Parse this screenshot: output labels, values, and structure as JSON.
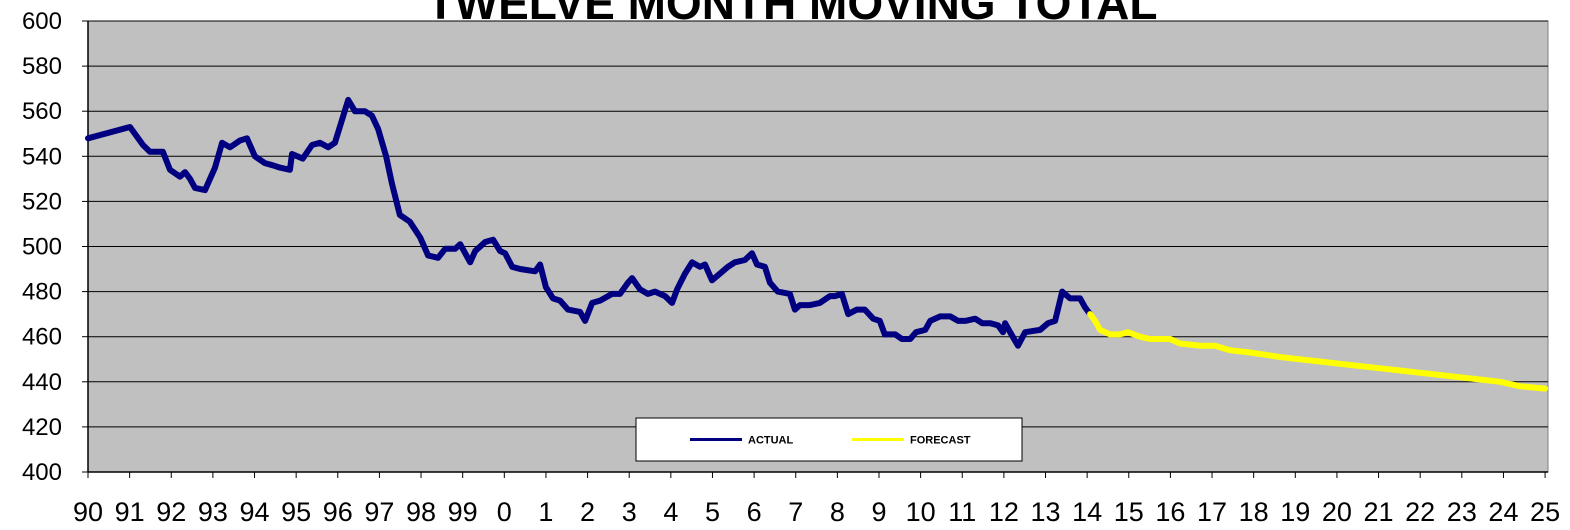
{
  "chart_data": {
    "type": "line",
    "title": "TWELVE MONTH MOVING TOTAL",
    "xlim": [
      1990,
      2025.07
    ],
    "ylim": [
      400,
      600
    ],
    "yticks": [
      400,
      420,
      440,
      460,
      480,
      500,
      520,
      540,
      560,
      580,
      600
    ],
    "xticks": [
      {
        "value": 1990,
        "label": "90"
      },
      {
        "value": 1991,
        "label": "91"
      },
      {
        "value": 1992,
        "label": "92"
      },
      {
        "value": 1993,
        "label": "93"
      },
      {
        "value": 1994,
        "label": "94"
      },
      {
        "value": 1995,
        "label": "95"
      },
      {
        "value": 1996,
        "label": "96"
      },
      {
        "value": 1997,
        "label": "97"
      },
      {
        "value": 1998,
        "label": "98"
      },
      {
        "value": 1999,
        "label": "99"
      },
      {
        "value": 2000,
        "label": "0"
      },
      {
        "value": 2001,
        "label": "1"
      },
      {
        "value": 2002,
        "label": "2"
      },
      {
        "value": 2003,
        "label": "3"
      },
      {
        "value": 2004,
        "label": "4"
      },
      {
        "value": 2005,
        "label": "5"
      },
      {
        "value": 2006,
        "label": "6"
      },
      {
        "value": 2007,
        "label": "7"
      },
      {
        "value": 2008,
        "label": "8"
      },
      {
        "value": 2009,
        "label": "9"
      },
      {
        "value": 2010,
        "label": "10"
      },
      {
        "value": 2011,
        "label": "11"
      },
      {
        "value": 2012,
        "label": "12"
      },
      {
        "value": 2013,
        "label": "13"
      },
      {
        "value": 2014,
        "label": "14"
      },
      {
        "value": 2015,
        "label": "15"
      },
      {
        "value": 2016,
        "label": "16"
      },
      {
        "value": 2017,
        "label": "17"
      },
      {
        "value": 2018,
        "label": "18"
      },
      {
        "value": 2019,
        "label": "19"
      },
      {
        "value": 2020,
        "label": "20"
      },
      {
        "value": 2021,
        "label": "21"
      },
      {
        "value": 2022,
        "label": "22"
      },
      {
        "value": 2023,
        "label": "23"
      },
      {
        "value": 2024,
        "label": "24"
      },
      {
        "value": 2025,
        "label": "25"
      }
    ],
    "grid": true,
    "legend": "bottom",
    "series": [
      {
        "name": "ACTUAL",
        "color": "#000080",
        "x": [
          1990.0,
          1991.01,
          1991.32,
          1991.49,
          1991.8,
          1991.97,
          1992.21,
          1992.33,
          1992.45,
          1992.57,
          1992.81,
          1993.05,
          1993.22,
          1993.41,
          1993.65,
          1993.82,
          1994.01,
          1994.25,
          1994.44,
          1994.61,
          1994.85,
          1994.9,
          1995.16,
          1995.38,
          1995.57,
          1995.77,
          1995.93,
          1996.25,
          1996.41,
          1996.65,
          1996.82,
          1996.97,
          1997.16,
          1997.3,
          1997.49,
          1997.73,
          1997.98,
          1998.17,
          1998.41,
          1998.58,
          1998.82,
          1998.94,
          1999.18,
          1999.3,
          1999.54,
          1999.73,
          1999.9,
          2000.02,
          2000.19,
          2000.38,
          2000.74,
          2000.86,
          2001.0,
          2001.17,
          2001.34,
          2001.53,
          2001.82,
          2001.94,
          2002.11,
          2002.3,
          2002.59,
          2002.78,
          2002.97,
          2003.07,
          2003.26,
          2003.45,
          2003.62,
          2003.86,
          2004.03,
          2004.15,
          2004.34,
          2004.51,
          2004.7,
          2004.82,
          2004.99,
          2005.18,
          2005.37,
          2005.54,
          2005.78,
          2005.95,
          2006.07,
          2006.26,
          2006.38,
          2006.57,
          2006.86,
          2006.98,
          2007.1,
          2007.34,
          2007.58,
          2007.82,
          2007.94,
          2008.11,
          2008.26,
          2008.47,
          2008.66,
          2008.86,
          2009.02,
          2009.14,
          2009.39,
          2009.55,
          2009.75,
          2009.89,
          2010.11,
          2010.23,
          2010.47,
          2010.71,
          2010.9,
          2011.07,
          2011.31,
          2011.48,
          2011.67,
          2011.86,
          2011.98,
          2012.03,
          2012.15,
          2012.34,
          2012.51,
          2012.87,
          2013.06,
          2013.23,
          2013.4,
          2013.59,
          2013.83,
          2013.95,
          2014.07
        ],
        "values": [
          548,
          553,
          545,
          542,
          542,
          534,
          531,
          533,
          530,
          526,
          525,
          535,
          546,
          544,
          547,
          548,
          540,
          537,
          536,
          535,
          534,
          541,
          539,
          545,
          546,
          544,
          546,
          565,
          560,
          560,
          558,
          552,
          540,
          528,
          514,
          511,
          504,
          496,
          495,
          499,
          499,
          501,
          493,
          498,
          502,
          503,
          498,
          497,
          491,
          490,
          489,
          492,
          482,
          477,
          476,
          472,
          471,
          467,
          475,
          476,
          479,
          479,
          484,
          486,
          481,
          479,
          480,
          478,
          475,
          481,
          488,
          493,
          491,
          492,
          485,
          488,
          491,
          493,
          494,
          497,
          492,
          491,
          484,
          480,
          479,
          472,
          474,
          474,
          475,
          478,
          478,
          479,
          470,
          472,
          472,
          468,
          467,
          461,
          461,
          459,
          459,
          462,
          463,
          467,
          469,
          469,
          467,
          467,
          468,
          466,
          466,
          465,
          462,
          466,
          462,
          456,
          462,
          463,
          466,
          467,
          480,
          477,
          477,
          473,
          470
        ]
      },
      {
        "name": "FORECAST",
        "color": "#ffff00",
        "x": [
          2014.07,
          2014.19,
          2014.31,
          2014.55,
          2014.79,
          2014.98,
          2015.27,
          2015.51,
          2015.99,
          2016.23,
          2016.71,
          2017.07,
          2017.43,
          2017.91,
          2018.27,
          2018.63,
          2019.11,
          2019.59,
          2020.07,
          2020.55,
          2021.04,
          2021.52,
          2022.0,
          2022.48,
          2022.96,
          2023.44,
          2023.92,
          2024.4,
          2025.0
        ],
        "values": [
          470,
          467,
          463,
          461,
          461,
          462,
          460,
          459,
          459,
          457,
          456,
          456,
          454,
          453,
          452,
          451,
          450,
          449,
          448,
          447,
          446,
          445,
          444,
          443,
          442,
          441,
          440,
          438,
          437
        ]
      }
    ]
  }
}
